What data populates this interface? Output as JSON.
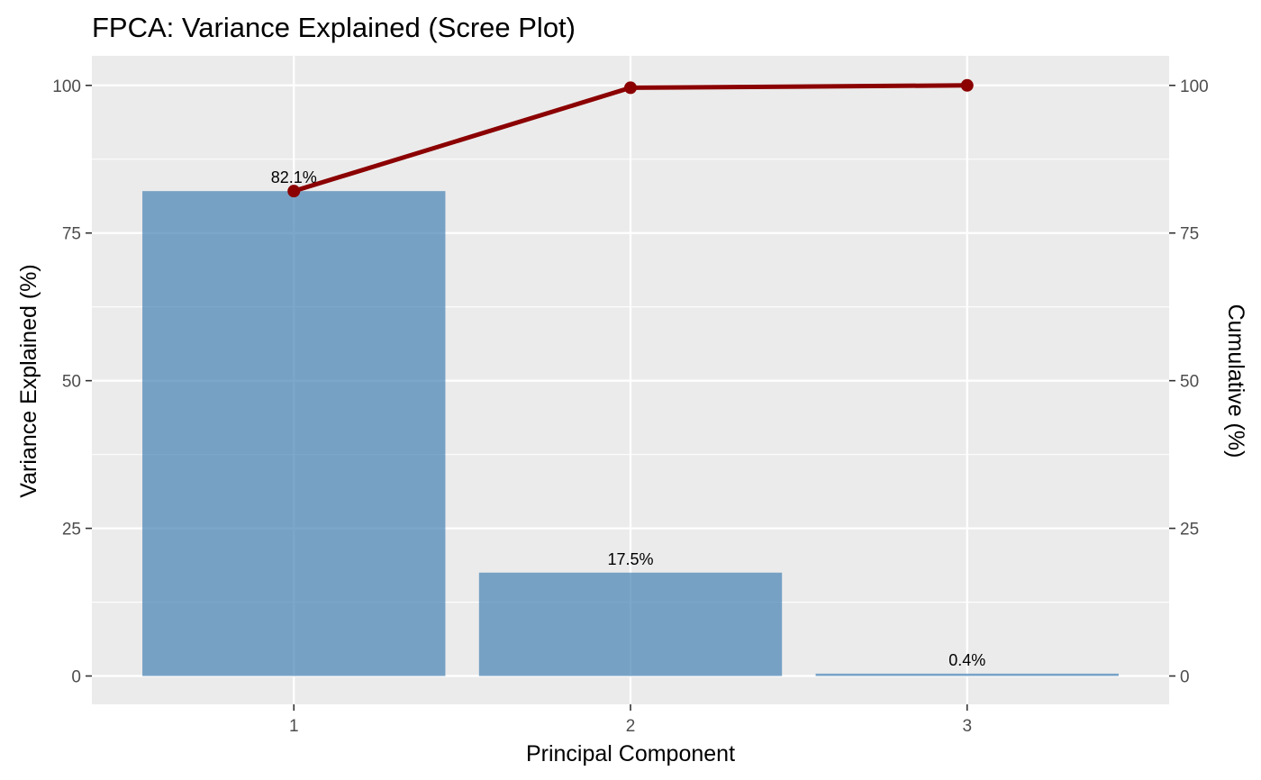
{
  "chart_data": {
    "type": "bar",
    "title": "FPCA: Variance Explained (Scree Plot)",
    "xlabel": "Principal Component",
    "ylabel": "Variance Explained (%)",
    "y2label": "Cumulative (%)",
    "categories": [
      "1",
      "2",
      "3"
    ],
    "series": [
      {
        "type": "bar",
        "values": [
          82.1,
          17.5,
          0.4
        ],
        "labels": [
          "82.1%",
          "17.5%",
          "0.4%"
        ],
        "color": "#4682b4"
      },
      {
        "type": "line",
        "values": [
          82.1,
          99.6,
          100.0
        ],
        "color": "#8b0000"
      }
    ],
    "ylim": [
      -4.8,
      105
    ],
    "y_ticks": [
      0,
      25,
      50,
      75,
      100
    ],
    "y_tick_labels": [
      "0",
      "25",
      "50",
      "75",
      "100"
    ],
    "y2_ticks": [
      0,
      25,
      50,
      75,
      100
    ],
    "y2_tick_labels": [
      "0",
      "25",
      "50",
      "75",
      "100"
    ],
    "grid": true,
    "panel_background": "#ebebeb",
    "grid_color": "#ffffff"
  }
}
